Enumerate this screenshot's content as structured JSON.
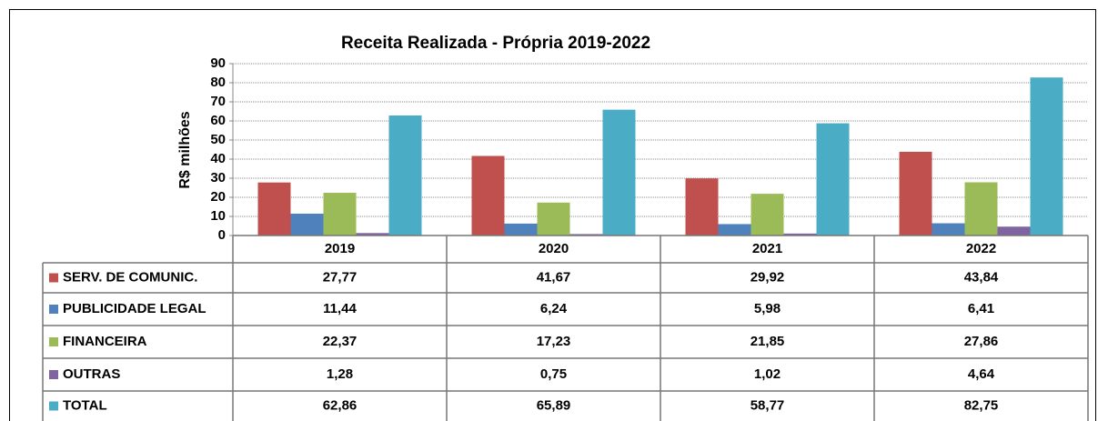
{
  "chart_data": {
    "type": "bar",
    "title": "Receita Realizada - Própria 2019-2022",
    "y_label": "R$ milhões",
    "categories": [
      "2019",
      "2020",
      "2021",
      "2022"
    ],
    "series": [
      {
        "name": "SERV. DE COMUNIC.",
        "color": "#c0504d",
        "values": [
          27.77,
          41.67,
          29.92,
          43.84
        ],
        "value_labels": [
          "27,77",
          "41,67",
          "29,92",
          "43,84"
        ]
      },
      {
        "name": "PUBLICIDADE LEGAL",
        "color": "#4f81bd",
        "values": [
          11.44,
          6.24,
          5.98,
          6.41
        ],
        "value_labels": [
          "11,44",
          "6,24",
          "5,98",
          "6,41"
        ]
      },
      {
        "name": "FINANCEIRA",
        "color": "#9bbb59",
        "values": [
          22.37,
          17.23,
          21.85,
          27.86
        ],
        "value_labels": [
          "22,37",
          "17,23",
          "21,85",
          "27,86"
        ]
      },
      {
        "name": "OUTRAS",
        "color": "#8064a2",
        "values": [
          1.28,
          0.75,
          1.02,
          4.64
        ],
        "value_labels": [
          "1,28",
          "0,75",
          "1,02",
          "4,64"
        ]
      },
      {
        "name": "TOTAL",
        "color": "#4bacc6",
        "values": [
          62.86,
          65.89,
          58.77,
          82.75
        ],
        "value_labels": [
          "62,86",
          "65,89",
          "58,77",
          "82,75"
        ]
      }
    ],
    "ylim": [
      0,
      90
    ],
    "yticks": [
      0,
      10,
      20,
      30,
      40,
      50,
      60,
      70,
      80,
      90
    ],
    "grid": true
  }
}
